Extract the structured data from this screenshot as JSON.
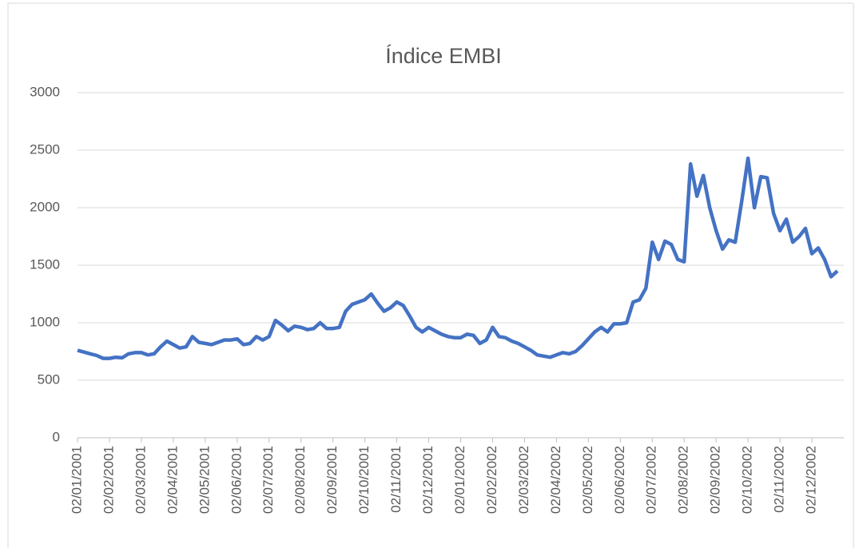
{
  "chart_data": {
    "type": "line",
    "title": "Índice EMBI",
    "categories": [
      "02/01/2001",
      null,
      null,
      null,
      null,
      "02/02/2001",
      null,
      null,
      null,
      null,
      "02/03/2001",
      null,
      null,
      null,
      null,
      "02/04/2001",
      null,
      null,
      null,
      null,
      "02/05/2001",
      null,
      null,
      null,
      null,
      "02/06/2001",
      null,
      null,
      null,
      null,
      "02/07/2001",
      null,
      null,
      null,
      null,
      "02/08/2001",
      null,
      null,
      null,
      null,
      "02/09/2001",
      null,
      null,
      null,
      null,
      "02/10/2001",
      null,
      null,
      null,
      null,
      "02/11/2001",
      null,
      null,
      null,
      null,
      "02/12/2001",
      null,
      null,
      null,
      null,
      "02/01/2002",
      null,
      null,
      null,
      null,
      "02/02/2002",
      null,
      null,
      null,
      null,
      "02/03/2002",
      null,
      null,
      null,
      null,
      "02/04/2002",
      null,
      null,
      null,
      null,
      "02/05/2002",
      null,
      null,
      null,
      null,
      "02/06/2002",
      null,
      null,
      null,
      null,
      "02/07/2002",
      null,
      null,
      null,
      null,
      "02/08/2002",
      null,
      null,
      null,
      null,
      "02/09/2002",
      null,
      null,
      null,
      null,
      "02/10/2002",
      null,
      null,
      null,
      null,
      "02/11/2002",
      null,
      null,
      null,
      null,
      "02/12/2002",
      null,
      null,
      null,
      null
    ],
    "series": [
      {
        "name": "EMBI",
        "color": "#4472c4",
        "values": [
          760,
          745,
          730,
          715,
          690,
          690,
          700,
          695,
          730,
          740,
          740,
          720,
          730,
          790,
          840,
          810,
          780,
          790,
          880,
          830,
          820,
          810,
          830,
          850,
          850,
          860,
          810,
          820,
          880,
          850,
          880,
          1020,
          980,
          930,
          970,
          960,
          940,
          950,
          1000,
          950,
          950,
          960,
          1100,
          1160,
          1180,
          1200,
          1250,
          1170,
          1100,
          1130,
          1180,
          1150,
          1060,
          960,
          920,
          960,
          930,
          900,
          880,
          870,
          870,
          900,
          890,
          820,
          850,
          960,
          880,
          870,
          840,
          820,
          790,
          760,
          720,
          710,
          700,
          720,
          740,
          730,
          750,
          800,
          860,
          920,
          960,
          920,
          990,
          990,
          1000,
          1180,
          1200,
          1300,
          1700,
          1550,
          1710,
          1680,
          1550,
          1530,
          2380,
          2100,
          2280,
          2000,
          1800,
          1640,
          1720,
          1700,
          2050,
          2430,
          2000,
          2270,
          2260,
          1950,
          1800,
          1900,
          1700,
          1750,
          1820,
          1600,
          1650,
          1550,
          1400,
          1450
        ]
      }
    ],
    "ylim": [
      0,
      3000
    ],
    "yticks": [
      0,
      500,
      1000,
      1500,
      2000,
      2500,
      3000
    ],
    "grid": true
  }
}
